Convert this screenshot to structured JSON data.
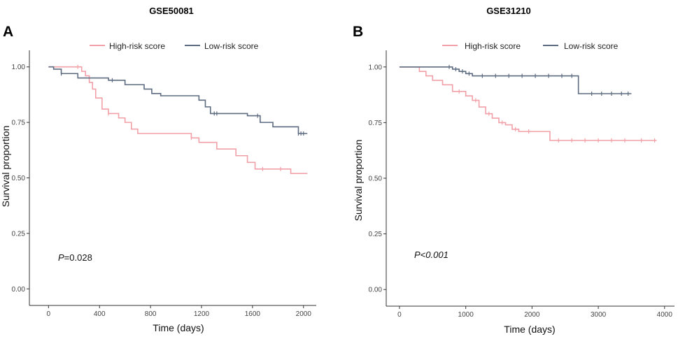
{
  "colors": {
    "high": "#f2a0a8",
    "low": "#5c6b80",
    "axis": "#333333"
  },
  "legend": {
    "high_label": "High-risk score",
    "low_label": "Low-risk score"
  },
  "chart_data": [
    {
      "type": "line",
      "panel": "A",
      "title": "GSE50081",
      "xlabel": "Time (days)",
      "ylabel": "Survival proportion",
      "xlim": [
        -150,
        2100
      ],
      "ylim": [
        0,
        1
      ],
      "xticks": [
        0,
        400,
        800,
        1200,
        1600,
        2000
      ],
      "yticks": [
        "0.00",
        "0.25",
        "0.50",
        "0.75",
        "1.00"
      ],
      "annotation": {
        "p_label": "P",
        "p_value": "=0.028"
      },
      "series": [
        {
          "name": "High-risk score",
          "x": [
            0,
            230,
            260,
            290,
            320,
            345,
            370,
            420,
            470,
            550,
            600,
            650,
            700,
            760,
            800,
            1120,
            1180,
            1320,
            1470,
            1560,
            1620,
            1700,
            1820,
            1900,
            2030
          ],
          "y": [
            1.0,
            1.0,
            0.98,
            0.96,
            0.93,
            0.9,
            0.86,
            0.81,
            0.79,
            0.77,
            0.75,
            0.72,
            0.7,
            0.7,
            0.7,
            0.68,
            0.66,
            0.63,
            0.6,
            0.57,
            0.54,
            0.54,
            0.54,
            0.52,
            0.52
          ],
          "censor_x": [
            230,
            470,
            1120,
            1680,
            1820
          ]
        },
        {
          "name": "Low-risk score",
          "x": [
            0,
            40,
            100,
            230,
            470,
            600,
            750,
            810,
            880,
            1140,
            1180,
            1230,
            1270,
            1360,
            1560,
            1660,
            1760,
            1960,
            2030
          ],
          "y": [
            1.0,
            0.99,
            0.97,
            0.95,
            0.94,
            0.92,
            0.9,
            0.88,
            0.87,
            0.87,
            0.85,
            0.82,
            0.79,
            0.79,
            0.78,
            0.75,
            0.73,
            0.7,
            0.7
          ],
          "censor_x": [
            100,
            500,
            1300,
            1320,
            1640,
            1960,
            1980,
            2000
          ]
        }
      ]
    },
    {
      "type": "line",
      "panel": "B",
      "title": "GSE31210",
      "xlabel": "Time (days)",
      "ylabel": "Survival proportion",
      "xlim": [
        -200,
        4150
      ],
      "ylim": [
        0,
        1
      ],
      "xticks": [
        0,
        1000,
        2000,
        3000,
        4000
      ],
      "yticks": [
        "0.00",
        "0.25",
        "0.50",
        "0.75",
        "1.00"
      ],
      "annotation": {
        "p_label": "P<0.001",
        "p_value": ""
      },
      "series": [
        {
          "name": "High-risk score",
          "x": [
            0,
            200,
            300,
            400,
            500,
            650,
            800,
            1000,
            1100,
            1200,
            1300,
            1400,
            1500,
            1600,
            1700,
            1800,
            2000,
            2150,
            2270,
            2500,
            3000,
            3500,
            3880
          ],
          "y": [
            1.0,
            1.0,
            0.98,
            0.96,
            0.94,
            0.92,
            0.89,
            0.87,
            0.85,
            0.82,
            0.79,
            0.77,
            0.75,
            0.74,
            0.72,
            0.71,
            0.71,
            0.71,
            0.67,
            0.67,
            0.67,
            0.67,
            0.67
          ],
          "censor_x": [
            900,
            1150,
            1350,
            1550,
            1750,
            1950,
            2400,
            2600,
            2800,
            3000,
            3200,
            3400,
            3650,
            3850
          ]
        },
        {
          "name": "Low-risk score",
          "x": [
            0,
            650,
            800,
            900,
            1000,
            1100,
            1500,
            2000,
            2500,
            2650,
            2700,
            3000,
            3300,
            3500
          ],
          "y": [
            1.0,
            1.0,
            0.99,
            0.98,
            0.97,
            0.96,
            0.96,
            0.96,
            0.96,
            0.96,
            0.88,
            0.88,
            0.88,
            0.88
          ],
          "censor_x": [
            750,
            850,
            950,
            1050,
            1250,
            1450,
            1650,
            1850,
            2050,
            2250,
            2450,
            2600,
            2900,
            3050,
            3200,
            3350,
            3450
          ]
        }
      ]
    }
  ]
}
